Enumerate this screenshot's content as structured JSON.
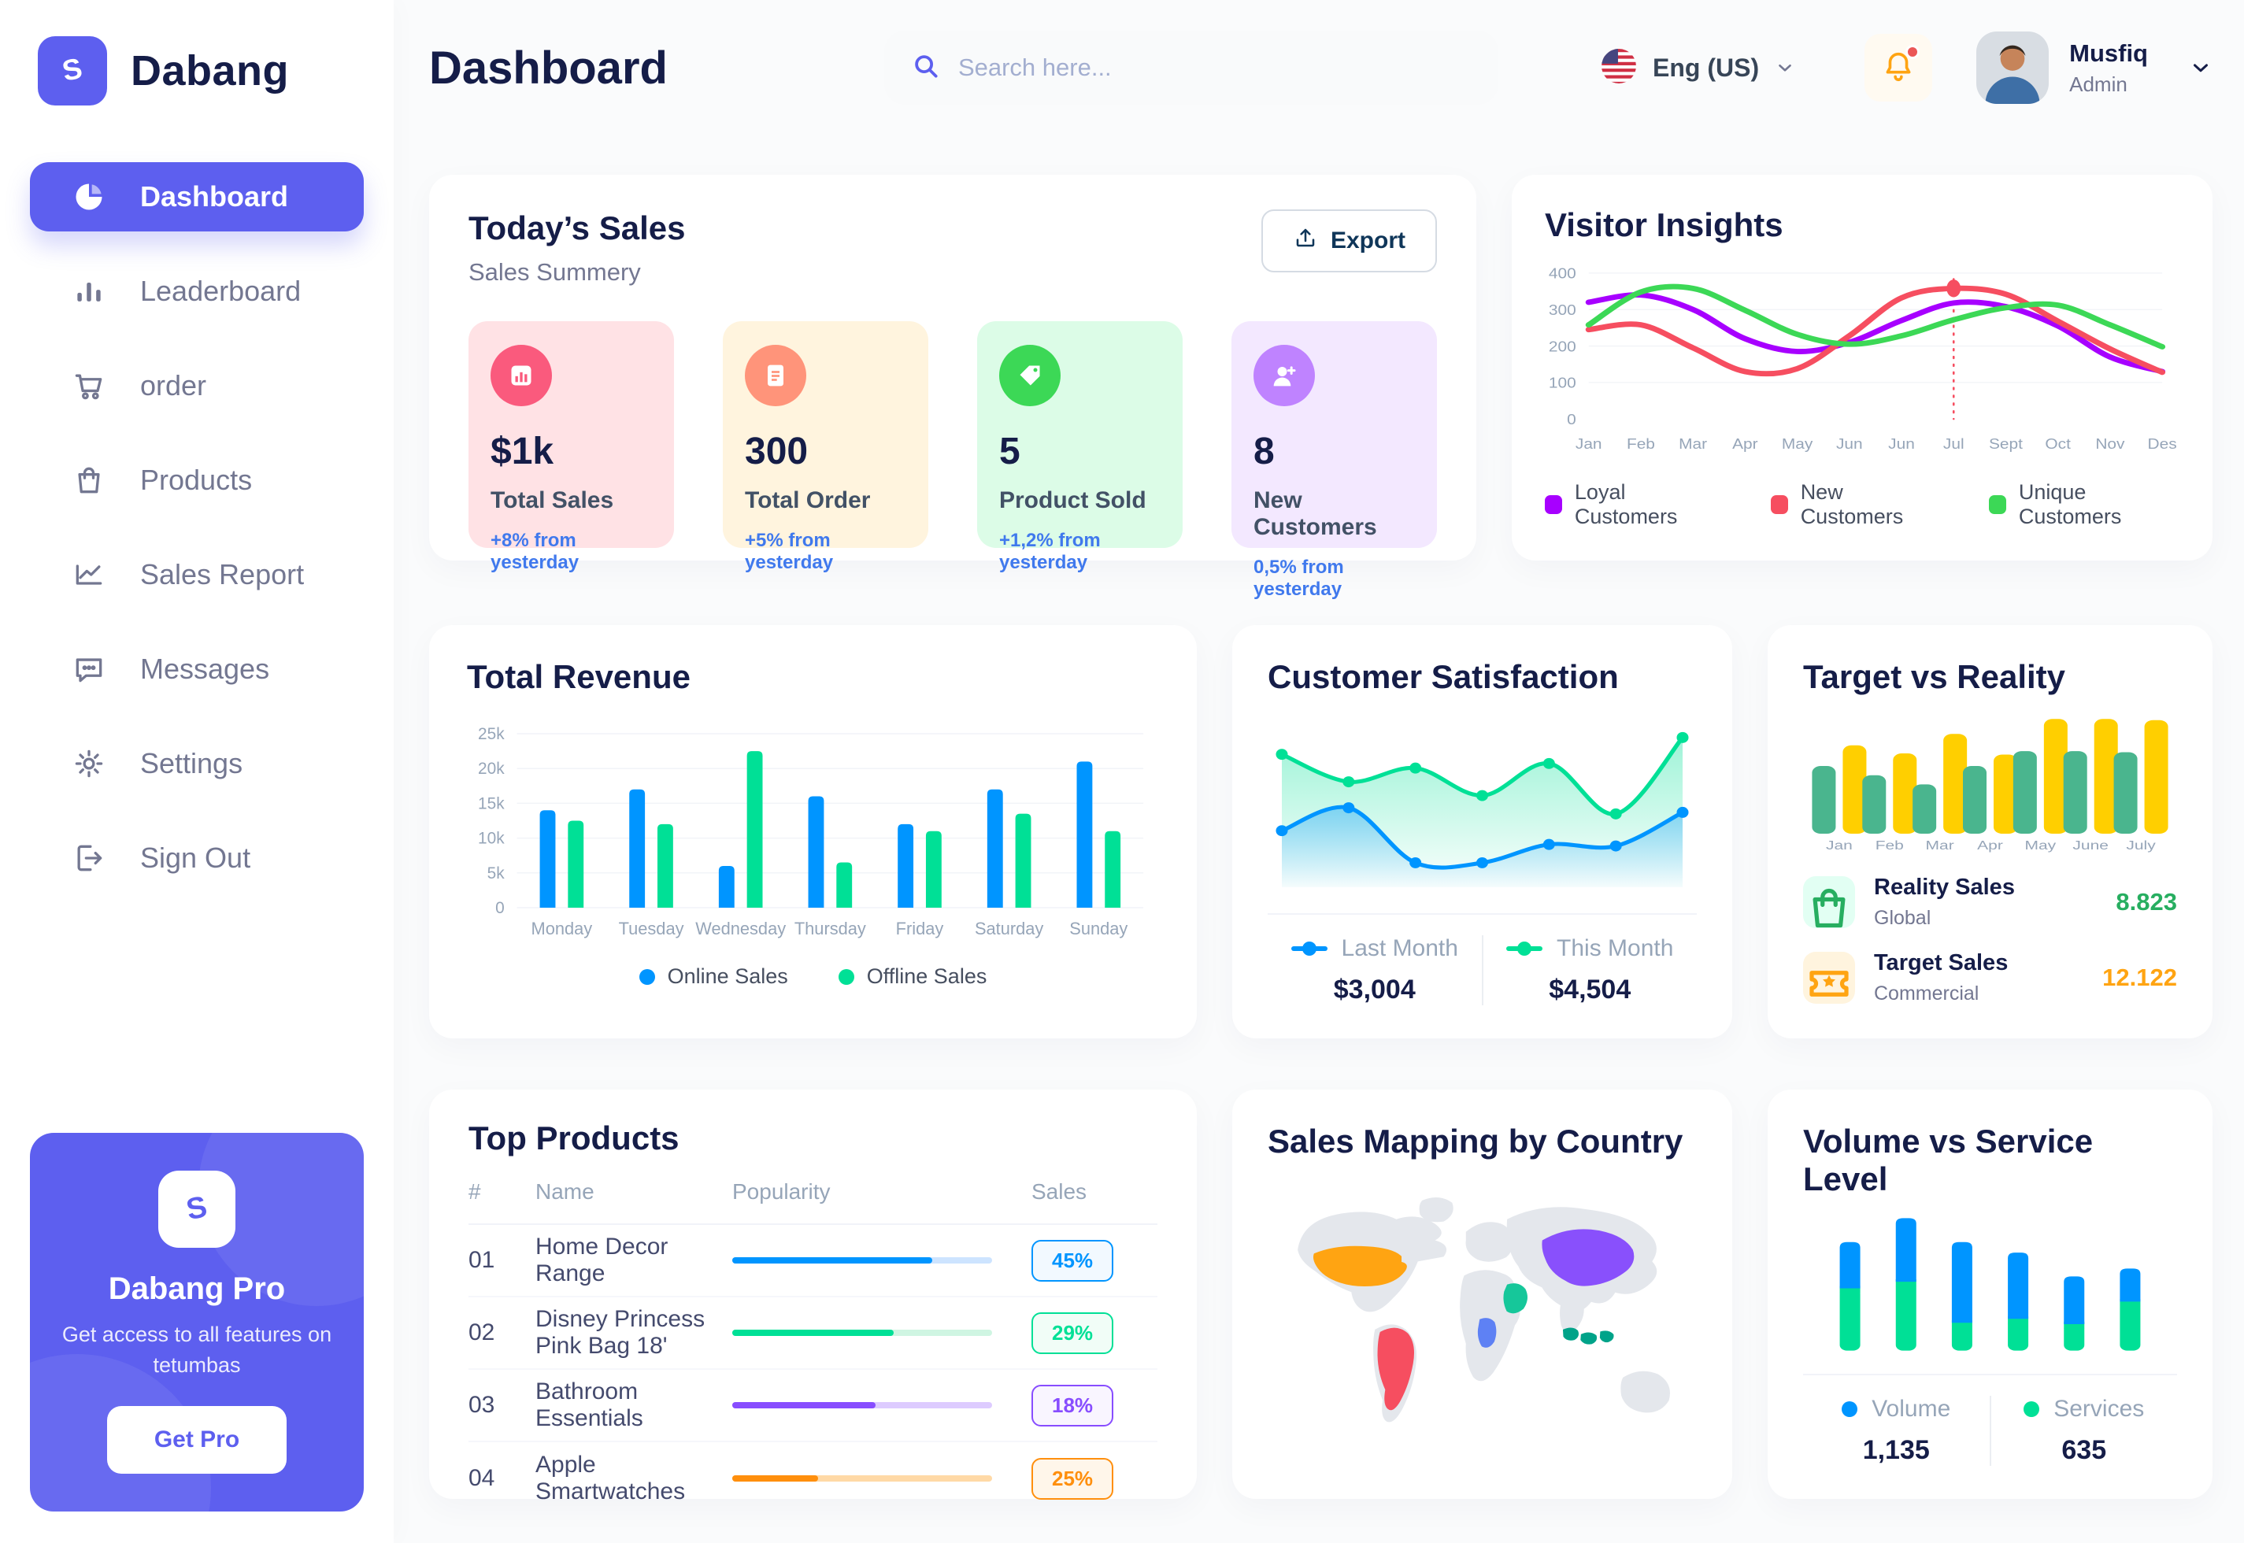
{
  "app": {
    "name": "Dabang"
  },
  "header": {
    "title": "Dashboard",
    "search_placeholder": "Search here...",
    "language": "Eng (US)",
    "user_name": "Musfiq",
    "user_role": "Admin"
  },
  "sidebar": {
    "items": [
      {
        "label": "Dashboard",
        "icon": "pie-chart-icon"
      },
      {
        "label": "Leaderboard",
        "icon": "bar-chart-icon"
      },
      {
        "label": "order",
        "icon": "cart-icon"
      },
      {
        "label": "Products",
        "icon": "bag-icon"
      },
      {
        "label": "Sales Report",
        "icon": "line-chart-icon"
      },
      {
        "label": "Messages",
        "icon": "message-icon"
      },
      {
        "label": "Settings",
        "icon": "gear-icon"
      },
      {
        "label": "Sign Out",
        "icon": "sign-out-icon"
      }
    ],
    "promo": {
      "title": "Dabang Pro",
      "description": "Get access to all features on tetumbas",
      "cta": "Get Pro"
    }
  },
  "today_sales": {
    "title": "Today’s Sales",
    "subtitle": "Sales Summery",
    "export_label": "Export",
    "cards": [
      {
        "value": "$1k",
        "label": "Total Sales",
        "delta": "+8% from yesterday",
        "bg": "#FFE2E5",
        "accent": "#FA5A7D",
        "icon": "sales-chart-icon"
      },
      {
        "value": "300",
        "label": "Total Order",
        "delta": "+5% from yesterday",
        "bg": "#FFF4DE",
        "accent": "#FF947A",
        "icon": "order-file-icon"
      },
      {
        "value": "5",
        "label": "Product Sold",
        "delta": "+1,2% from yesterday",
        "bg": "#DCFCE7",
        "accent": "#3CD856",
        "icon": "tag-icon"
      },
      {
        "value": "8",
        "label": "New Customers",
        "delta": "0,5% from yesterday",
        "bg": "#F3E8FF",
        "accent": "#BF83FF",
        "icon": "user-plus-icon"
      }
    ]
  },
  "chart_data": [
    {
      "id": "visitor-insights",
      "type": "line",
      "title": "Visitor Insights",
      "x_labels": [
        "Jan",
        "Feb",
        "Mar",
        "Apr",
        "May",
        "Jun",
        "Jun",
        "Jul",
        "Sept",
        "Oct",
        "Nov",
        "Des"
      ],
      "ylim": [
        0,
        400
      ],
      "yticks": [
        {
          "label": "0",
          "value": 0
        },
        {
          "label": "100",
          "value": 100
        },
        {
          "label": "200",
          "value": 200
        },
        {
          "label": "300",
          "value": 300
        },
        {
          "label": "400",
          "value": 400
        }
      ],
      "grid": true,
      "series": [
        {
          "name": "Loyal Customers",
          "color": "#A700FF",
          "values": [
            320,
            340,
            300,
            220,
            185,
            210,
            270,
            318,
            308,
            255,
            170,
            130
          ]
        },
        {
          "name": "New Customers",
          "color": "#F64E60",
          "values": [
            245,
            258,
            195,
            130,
            138,
            228,
            332,
            358,
            342,
            268,
            192,
            128
          ]
        },
        {
          "name": "Unique Customers",
          "color": "#3CD856",
          "values": [
            258,
            348,
            358,
            298,
            232,
            205,
            228,
            272,
            305,
            312,
            258,
            198
          ]
        }
      ],
      "vline": {
        "x_index": 7,
        "color": "#F64E60"
      },
      "marker": {
        "series_index": 1,
        "x_index": 7
      }
    },
    {
      "id": "total-revenue",
      "type": "bar",
      "title": "Total Revenue",
      "categories": [
        "Monday",
        "Tuesday",
        "Wednesday",
        "Thursday",
        "Friday",
        "Saturday",
        "Sunday"
      ],
      "ylim": [
        0,
        25000
      ],
      "yticks": [
        {
          "label": "0",
          "value": 0
        },
        {
          "label": "5k",
          "value": 5000
        },
        {
          "label": "10k",
          "value": 10000
        },
        {
          "label": "15k",
          "value": 15000
        },
        {
          "label": "20k",
          "value": 20000
        },
        {
          "label": "25k",
          "value": 25000
        }
      ],
      "grid": true,
      "series": [
        {
          "name": "Online Sales",
          "color": "#0095FF",
          "values": [
            14000,
            17000,
            6000,
            16000,
            12000,
            17000,
            21000
          ]
        },
        {
          "name": "Offline Sales",
          "color": "#00E096",
          "values": [
            12500,
            12000,
            22500,
            6500,
            11000,
            13500,
            11000
          ]
        }
      ]
    },
    {
      "id": "customer-satisfaction",
      "type": "area",
      "title": "Customer Satisfaction",
      "ylim": [
        0,
        105
      ],
      "series": [
        {
          "name": "Last Month",
          "color": "#0095FF",
          "total": "$3,004",
          "values": [
            37,
            52,
            16,
            16,
            28,
            27,
            49
          ]
        },
        {
          "name": "This Month",
          "color": "#00E096",
          "total": "$4,504",
          "values": [
            87,
            69,
            78,
            60,
            81,
            48,
            98
          ]
        }
      ]
    },
    {
      "id": "target-reality",
      "type": "bar",
      "title": "Target vs Reality",
      "categories": [
        "Jan",
        "Feb",
        "Mar",
        "Apr",
        "May",
        "June",
        "July"
      ],
      "ylim": [
        0,
        100
      ],
      "yticks": [],
      "grid": false,
      "series": [
        {
          "name": "Reality Sales",
          "color": "#4AB58E",
          "values": [
            59,
            51,
            43,
            59,
            72,
            72,
            71
          ]
        },
        {
          "name": "Target Sales",
          "color": "#FFCF00",
          "values": [
            77,
            70,
            87,
            69,
            100,
            100,
            99
          ]
        }
      ],
      "legend": [
        {
          "title": "Reality Sales",
          "subtitle": "Global",
          "value": "8.823",
          "value_color": "#27AE60",
          "tile_bg": "#E2FFF3",
          "icon": "bag-icon"
        },
        {
          "title": "Target Sales",
          "subtitle": "Commercial",
          "value": "12.122",
          "value_color": "#FFA412",
          "tile_bg": "#FFF4DE",
          "icon": "ticket-icon"
        }
      ]
    },
    {
      "id": "volume-service",
      "type": "stacked-bar",
      "title": "Volume vs Service Level",
      "ylim": [
        0,
        100
      ],
      "series": [
        {
          "name": "Volume",
          "color": "#0095FF",
          "total": "1,135",
          "values": [
            35,
            48,
            61,
            50,
            36,
            25
          ]
        },
        {
          "name": "Services",
          "color": "#00E096",
          "total": "635",
          "values": [
            47,
            52,
            21,
            24,
            20,
            37
          ]
        }
      ]
    }
  ],
  "top_products": {
    "title": "Top Products",
    "headers": [
      "#",
      "Name",
      "Popularity",
      "Sales"
    ],
    "rows": [
      {
        "num": "01",
        "name": "Home Decor Range",
        "fill": 77,
        "color": "#0095FF",
        "track": "#CDE4FF",
        "badge": "45%",
        "badge_bg": "#F2F9FF"
      },
      {
        "num": "02",
        "name": "Disney Princess Pink Bag 18'",
        "fill": 62,
        "color": "#00E096",
        "track": "#CFF5E2",
        "badge": "29%",
        "badge_bg": "#F1FDF7"
      },
      {
        "num": "03",
        "name": "Bathroom Essentials",
        "fill": 55,
        "color": "#884DFF",
        "track": "#DDCBFF",
        "badge": "18%",
        "badge_bg": "#F9F5FF"
      },
      {
        "num": "04",
        "name": "Apple Smartwatches",
        "fill": 33,
        "color": "#FF8F0D",
        "track": "#FFD9A6",
        "badge": "25%",
        "badge_bg": "#FFF6EA"
      }
    ]
  },
  "sales_map": {
    "title": "Sales Mapping by Country",
    "countries": [
      {
        "key": "united-states",
        "name": "United States",
        "color": "#FFA412"
      },
      {
        "key": "brazil",
        "name": "Brazil",
        "color": "#F64E60"
      },
      {
        "key": "dr-congo",
        "name": "DR Congo",
        "color": "#5E81F4"
      },
      {
        "key": "saudi-arabia",
        "name": "Saudi Arabia",
        "color": "#16C79A"
      },
      {
        "key": "china",
        "name": "China",
        "color": "#8950FC"
      },
      {
        "key": "indonesia",
        "name": "Indonesia",
        "color": "#00A389"
      }
    ]
  }
}
